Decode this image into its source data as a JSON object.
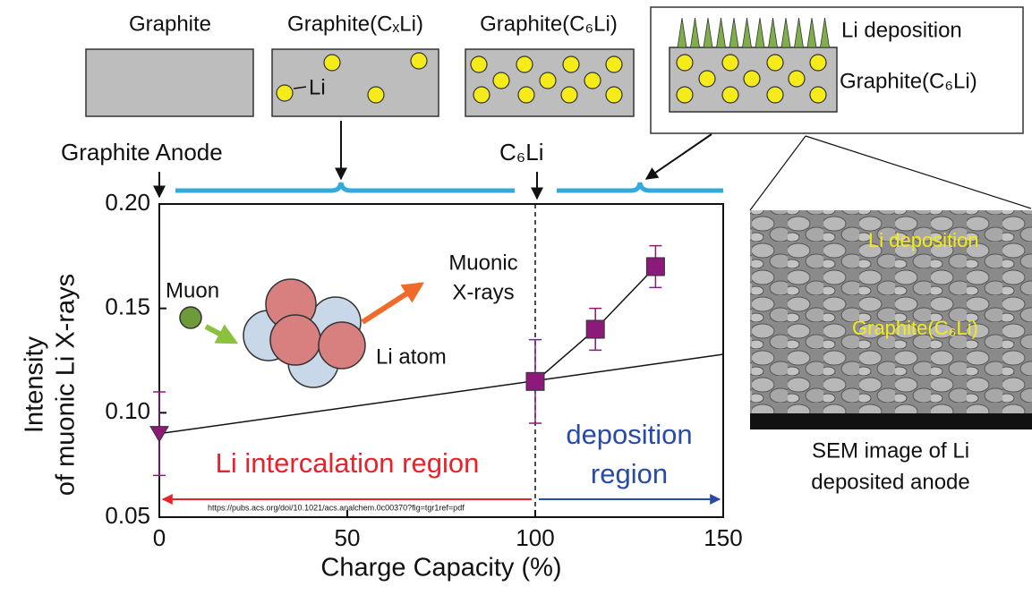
{
  "chart_data": {
    "type": "scatter",
    "xlabel": "Charge Capacity (%)",
    "ylabel": [
      "Intensity",
      "of muonic Li X-rays"
    ],
    "xlim": [
      0,
      150
    ],
    "xticks": [
      0,
      50,
      100,
      150
    ],
    "ylim": [
      0.05,
      0.2
    ],
    "yticks": [
      {
        "value": 0.05,
        "label": "0.05"
      },
      {
        "value": 0.1,
        "label": "0.10"
      },
      {
        "value": 0.15,
        "label": "0.15"
      },
      {
        "value": 0.2,
        "label": "0.20"
      }
    ],
    "series": [
      {
        "marker": "triangle",
        "color": "#8b1a7a",
        "x": [
          0
        ],
        "values": [
          0.09
        ],
        "errors": [
          0.02
        ]
      },
      {
        "marker": "square",
        "color": "#8b1a7a",
        "x": [
          100,
          116,
          132
        ],
        "values": [
          0.115,
          0.14,
          0.17
        ],
        "errors": [
          0.02,
          0.01,
          0.01
        ]
      }
    ],
    "trend_line": {
      "x": [
        0,
        150
      ],
      "values": [
        0.09,
        0.128
      ]
    },
    "divider_x": 100,
    "regions": [
      {
        "label": [
          "Li intercalation region"
        ],
        "color": "#e8222a"
      },
      {
        "label": [
          "deposition",
          "region"
        ],
        "color": "#2a4aa8"
      }
    ],
    "url": "https://pubs.acs.org/doi/10.1021/acs.analchem.0c00370?fig=tgr1ref=pdf"
  },
  "stages": {
    "graphite": "Graphite",
    "cxli": "Graphite(CₓLi)",
    "c6li": "Graphite(C₆Li)",
    "li": "Li",
    "deposition": "Li deposition",
    "deposition_base": "Graphite(C₆Li)"
  },
  "pointers": {
    "anode": "Graphite Anode",
    "c6li": "C₆Li"
  },
  "inset": {
    "muon": "Muon",
    "xrays": [
      "Muonic",
      "X-rays"
    ],
    "atom": "Li atom"
  },
  "sem": {
    "deposition": "Li deposition",
    "base": "Graphite(C₆Li)",
    "caption": [
      "SEM image of Li",
      "deposited anode"
    ]
  }
}
